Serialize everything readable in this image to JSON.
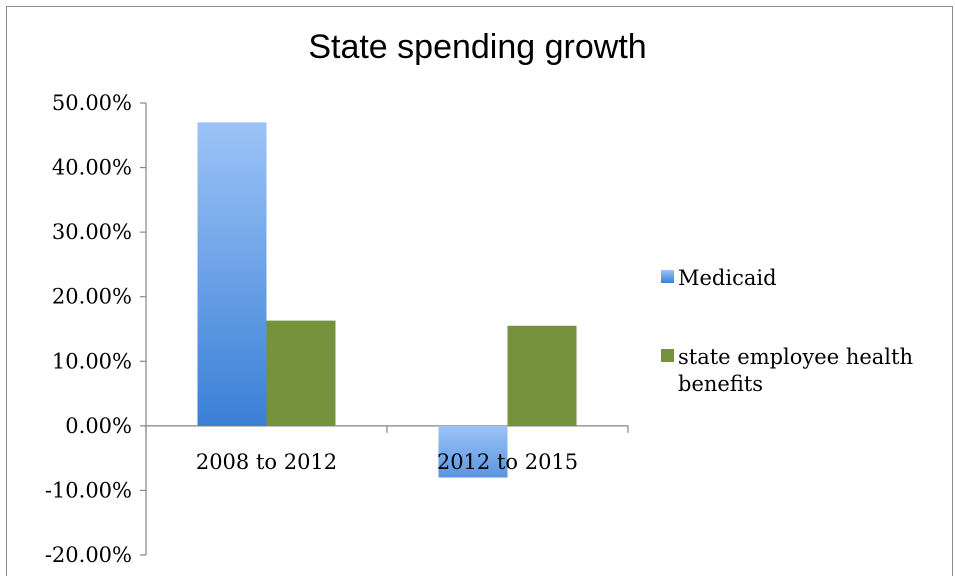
{
  "chart_data": {
    "type": "bar",
    "title": "State spending growth",
    "categories": [
      "2008 to 2012",
      "2012 to 2015"
    ],
    "series": [
      {
        "name": "Medicaid",
        "values": [
          47.0,
          -8.0
        ],
        "color": "#5b9be6"
      },
      {
        "name": "state employee health benefits",
        "values": [
          16.3,
          15.5
        ],
        "color": "#76923c"
      }
    ],
    "y_ticks": [
      "50.00%",
      "40.00%",
      "30.00%",
      "20.00%",
      "10.00%",
      "0.00%",
      "-10.00%",
      "-20.00%"
    ],
    "ylim": [
      -20,
      50
    ],
    "grid": false,
    "legend_position": "right",
    "legend_lines": {
      "medicaid": [
        "Medicaid"
      ],
      "state_employee": [
        "state employee health",
        "benefits"
      ]
    }
  }
}
